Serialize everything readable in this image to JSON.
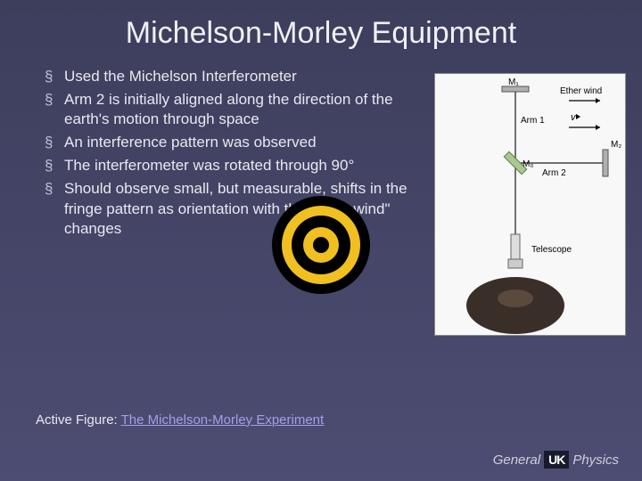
{
  "title": "Michelson-Morley Equipment",
  "bullets": [
    "Used the Michelson Interferometer",
    "Arm 2 is initially aligned along the direction of the earth's motion through space",
    "An interference pattern was observed",
    "The interferometer was rotated through 90°",
    "Should observe small, but measurable, shifts in the fringe pattern as orientation with the \"ether wind\" changes"
  ],
  "active_figure": {
    "label": "Active Figure: ",
    "link_text": "The Michelson-Morley Experiment"
  },
  "footer": {
    "left": "General",
    "logo": "UK",
    "right": "Physics"
  },
  "diagram": {
    "labels": {
      "m1": "M₁",
      "m0": "M₀",
      "m2": "M₂",
      "arm1": "Arm 1",
      "arm2": "Arm 2",
      "ether": "Ether wind",
      "telescope": "Telescope"
    },
    "colors": {
      "background": "#f8f8f8",
      "line": "#444444",
      "mirror": "#b0b0b0",
      "splitter": "#a8c890",
      "head": "#3a2f28"
    }
  },
  "rings": {
    "colors": [
      "#000000",
      "#f0c020",
      "#000000",
      "#f0c020",
      "#000000"
    ],
    "radii": [
      55,
      44,
      33,
      20,
      9
    ]
  }
}
